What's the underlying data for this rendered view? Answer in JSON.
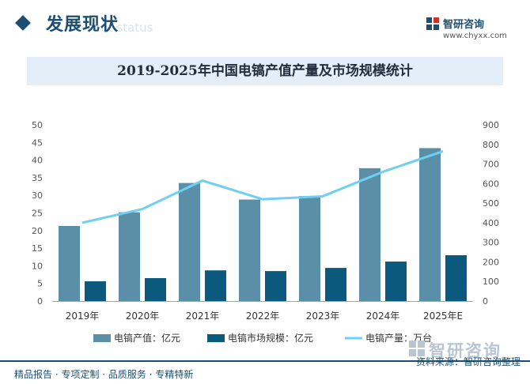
{
  "header": {
    "title": "发展现状",
    "subtitle": "ent status"
  },
  "brand": {
    "name": "智研咨询",
    "url": "www.chyxx.com"
  },
  "chart_data": {
    "type": "bar",
    "title": "2019-2025年中国电镐产值产量及市场规模统计",
    "categories": [
      "2019年",
      "2020年",
      "2021年",
      "2022年",
      "2023年",
      "2024年",
      "2025年E"
    ],
    "y_left": {
      "ylim": [
        0,
        50
      ],
      "ticks": [
        "0",
        "5",
        "10",
        "15",
        "20",
        "25",
        "30",
        "35",
        "40",
        "45",
        "50"
      ]
    },
    "y_right": {
      "ylim": [
        0,
        900
      ],
      "ticks": [
        "0",
        "100",
        "200",
        "300",
        "400",
        "500",
        "600",
        "700",
        "800",
        "900"
      ]
    },
    "series": [
      {
        "name": "电镐产值：亿元",
        "kind": "bar",
        "axis": "left",
        "color": "#5b8fa8",
        "values": [
          21.3,
          25.2,
          33.5,
          28.8,
          29.8,
          37.7,
          43.4
        ]
      },
      {
        "name": "电镐市场规模：亿元",
        "kind": "bar",
        "axis": "left",
        "color": "#0b5a7d",
        "values": [
          5.6,
          6.5,
          8.7,
          8.5,
          9.4,
          11.2,
          13.0
        ]
      },
      {
        "name": "电镐产量：万台",
        "kind": "line",
        "axis": "right",
        "color": "#6ecff0",
        "values": [
          400,
          470,
          615,
          520,
          535,
          660,
          765
        ]
      }
    ],
    "legend_position": "bottom",
    "grid": false
  },
  "footer": {
    "left_text": "精品报告 · 专项定制 · 品质服务 · 专精特新",
    "brand": "智研咨询",
    "source": "资料来源：智研咨询整理"
  }
}
